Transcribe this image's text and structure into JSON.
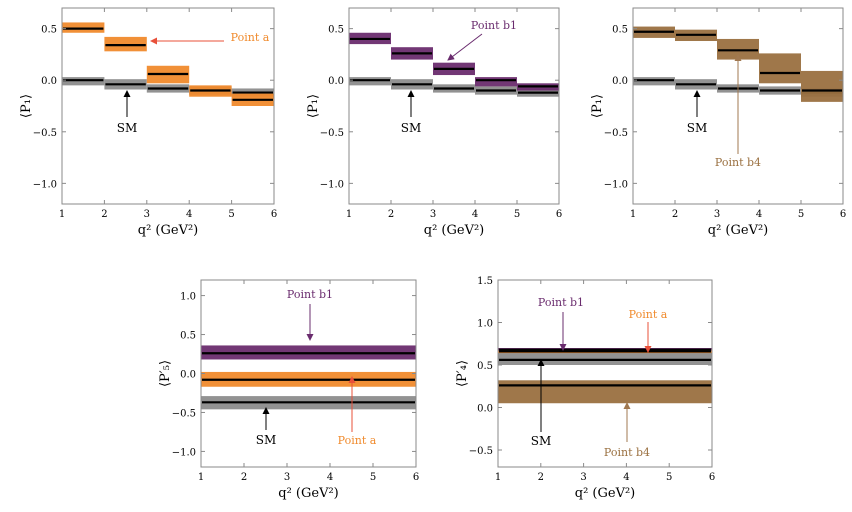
{
  "colors": {
    "sm": "#8c8c8c",
    "point_a": "#f08a2c",
    "point_b1": "#6a2c6e",
    "point_b4": "#9a7040",
    "frame": "#8a8a8a",
    "arrow_sm": "#000000",
    "arrow_a": "#e8503a",
    "arrow_b1": "#6a2c6e",
    "arrow_b4": "#a07850"
  },
  "chart_data": [
    {
      "type": "bar",
      "title": "",
      "xlabel": "q² (GeV²)",
      "ylabel": "⟨P₁⟩",
      "xlim": [
        1,
        6
      ],
      "ylim": [
        -1.2,
        0.7
      ],
      "xticks": [
        "1",
        "2",
        "3",
        "4",
        "5",
        "6"
      ],
      "yticks": [
        "0.5",
        "0.0",
        "−0.5",
        "−1.0"
      ],
      "ytick_values": [
        0.5,
        0.0,
        -0.5,
        -1.0
      ],
      "bins": [
        [
          1,
          2
        ],
        [
          2,
          3
        ],
        [
          3,
          4
        ],
        [
          4,
          5
        ],
        [
          5,
          6
        ]
      ],
      "series": [
        {
          "name": "SM",
          "central": [
            0.0,
            -0.04,
            -0.08,
            -0.1,
            -0.12
          ],
          "lower": [
            -0.05,
            -0.09,
            -0.12,
            -0.14,
            -0.16
          ],
          "upper": [
            0.03,
            0.01,
            -0.04,
            -0.06,
            -0.08
          ]
        },
        {
          "name": "Point a",
          "central": [
            0.5,
            0.34,
            0.06,
            -0.1,
            -0.19
          ],
          "lower": [
            0.46,
            0.28,
            -0.03,
            -0.16,
            -0.25
          ],
          "upper": [
            0.56,
            0.42,
            0.14,
            -0.05,
            -0.13
          ]
        }
      ],
      "annotations": [
        {
          "text": "Point a",
          "target": "Point a"
        },
        {
          "text": "SM",
          "target": "SM"
        }
      ]
    },
    {
      "type": "bar",
      "title": "",
      "xlabel": "q² (GeV²)",
      "ylabel": "⟨P₁⟩",
      "xlim": [
        1,
        6
      ],
      "ylim": [
        -1.2,
        0.7
      ],
      "xticks": [
        "1",
        "2",
        "3",
        "4",
        "5",
        "6"
      ],
      "yticks": [
        "0.5",
        "0.0",
        "−0.5",
        "−1.0"
      ],
      "ytick_values": [
        0.5,
        0.0,
        -0.5,
        -1.0
      ],
      "bins": [
        [
          1,
          2
        ],
        [
          2,
          3
        ],
        [
          3,
          4
        ],
        [
          4,
          5
        ],
        [
          5,
          6
        ]
      ],
      "series": [
        {
          "name": "SM",
          "central": [
            0.0,
            -0.04,
            -0.08,
            -0.1,
            -0.12
          ],
          "lower": [
            -0.05,
            -0.09,
            -0.12,
            -0.14,
            -0.16
          ],
          "upper": [
            0.03,
            0.01,
            -0.04,
            -0.06,
            -0.08
          ]
        },
        {
          "name": "Point b1",
          "central": [
            0.4,
            0.26,
            0.11,
            0.0,
            -0.06
          ],
          "lower": [
            0.35,
            0.2,
            0.05,
            -0.06,
            -0.1
          ],
          "upper": [
            0.46,
            0.32,
            0.17,
            0.03,
            -0.03
          ]
        }
      ],
      "annotations": [
        {
          "text": "Point b1",
          "target": "Point b1"
        },
        {
          "text": "SM",
          "target": "SM"
        }
      ]
    },
    {
      "type": "bar",
      "title": "",
      "xlabel": "q² (GeV²)",
      "ylabel": "⟨P₁⟩",
      "xlim": [
        1,
        6
      ],
      "ylim": [
        -1.2,
        0.7
      ],
      "xticks": [
        "1",
        "2",
        "3",
        "4",
        "5",
        "6"
      ],
      "yticks": [
        "0.5",
        "0.0",
        "−0.5",
        "−1.0"
      ],
      "ytick_values": [
        0.5,
        0.0,
        -0.5,
        -1.0
      ],
      "bins": [
        [
          1,
          2
        ],
        [
          2,
          3
        ],
        [
          3,
          4
        ],
        [
          4,
          5
        ],
        [
          5,
          6
        ]
      ],
      "series": [
        {
          "name": "SM",
          "central": [
            0.0,
            -0.04,
            -0.08,
            -0.1,
            -0.12
          ],
          "lower": [
            -0.05,
            -0.09,
            -0.12,
            -0.14,
            -0.16
          ],
          "upper": [
            0.03,
            0.01,
            -0.04,
            -0.06,
            -0.08
          ]
        },
        {
          "name": "Point b4",
          "central": [
            0.47,
            0.44,
            0.29,
            0.07,
            -0.1
          ],
          "lower": [
            0.41,
            0.38,
            0.2,
            -0.03,
            -0.21
          ],
          "upper": [
            0.52,
            0.49,
            0.4,
            0.26,
            0.09
          ]
        }
      ],
      "annotations": [
        {
          "text": "Point b4",
          "target": "Point b4"
        },
        {
          "text": "SM",
          "target": "SM"
        }
      ]
    },
    {
      "type": "bar",
      "title": "",
      "xlabel": "q² (GeV²)",
      "ylabel": "⟨P′₅⟩",
      "xlim": [
        1,
        6
      ],
      "ylim": [
        -1.2,
        1.2
      ],
      "xticks": [
        "1",
        "2",
        "3",
        "4",
        "5",
        "6"
      ],
      "yticks": [
        "1.0",
        "0.5",
        "0.0",
        "−0.5",
        "−1.0"
      ],
      "ytick_values": [
        1.0,
        0.5,
        0.0,
        -0.5,
        -1.0
      ],
      "bins": [
        [
          1,
          6
        ]
      ],
      "series": [
        {
          "name": "Point b1",
          "central": [
            0.26
          ],
          "lower": [
            0.18
          ],
          "upper": [
            0.36
          ]
        },
        {
          "name": "Point a",
          "central": [
            -0.08
          ],
          "lower": [
            -0.17
          ],
          "upper": [
            0.02
          ]
        },
        {
          "name": "SM",
          "central": [
            -0.37
          ],
          "lower": [
            -0.46
          ],
          "upper": [
            -0.29
          ]
        }
      ],
      "annotations": [
        {
          "text": "Point b1",
          "target": "Point b1"
        },
        {
          "text": "SM",
          "target": "SM"
        },
        {
          "text": "Point a",
          "target": "Point a"
        }
      ]
    },
    {
      "type": "bar",
      "title": "",
      "xlabel": "q² (GeV²)",
      "ylabel": "⟨P′₄⟩",
      "xlim": [
        1,
        6
      ],
      "ylim": [
        -0.7,
        1.5
      ],
      "xticks": [
        "1",
        "2",
        "3",
        "4",
        "5",
        "6"
      ],
      "yticks": [
        "1.5",
        "1.0",
        "0.5",
        "0.0",
        "−0.5"
      ],
      "ytick_values": [
        1.5,
        1.0,
        0.5,
        0.0,
        -0.5
      ],
      "bins": [
        [
          1,
          6
        ]
      ],
      "series": [
        {
          "name": "Point b4",
          "central": [
            0.26
          ],
          "lower": [
            0.05
          ],
          "upper": [
            0.32
          ]
        },
        {
          "name": "SM",
          "central": [
            0.56
          ],
          "lower": [
            0.5
          ],
          "upper": [
            0.66
          ]
        },
        {
          "name": "Point a",
          "central": [
            0.66
          ],
          "lower": [
            0.64
          ],
          "upper": [
            0.69
          ]
        },
        {
          "name": "Point b1",
          "central": [
            0.68
          ],
          "lower": [
            0.67
          ],
          "upper": [
            0.7
          ]
        }
      ],
      "annotations": [
        {
          "text": "Point b1",
          "target": "Point b1"
        },
        {
          "text": "Point a",
          "target": "Point a"
        },
        {
          "text": "SM",
          "target": "SM"
        },
        {
          "text": "Point b4",
          "target": "Point b4"
        }
      ]
    }
  ]
}
